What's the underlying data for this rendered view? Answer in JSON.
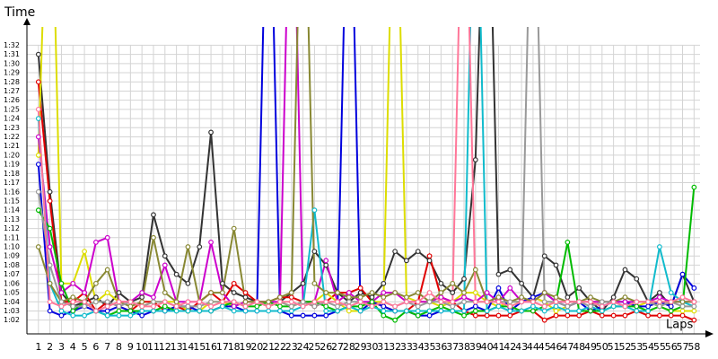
{
  "chart_data": {
    "type": "line",
    "ylabel": "Time",
    "xlabel": "Laps",
    "x": [
      1,
      2,
      3,
      4,
      5,
      6,
      7,
      8,
      9,
      10,
      11,
      12,
      13,
      14,
      15,
      16,
      17,
      18,
      19,
      20,
      21,
      22,
      23,
      24,
      25,
      26,
      27,
      28,
      29,
      30,
      31,
      32,
      33,
      34,
      35,
      36,
      37,
      38,
      39,
      40,
      41,
      42,
      43,
      44,
      45,
      46,
      47,
      48,
      49,
      50,
      51,
      52,
      53,
      54,
      55,
      56,
      57,
      58
    ],
    "xlim": [
      0,
      59.3
    ],
    "xticks": [
      1,
      2,
      3,
      4,
      5,
      6,
      7,
      8,
      9,
      10,
      11,
      12,
      13,
      14,
      15,
      16,
      17,
      18,
      19,
      20,
      21,
      22,
      23,
      24,
      25,
      26,
      27,
      28,
      29,
      30,
      31,
      32,
      33,
      34,
      35,
      36,
      37,
      38,
      39,
      40,
      41,
      42,
      43,
      44,
      45,
      46,
      47,
      48,
      49,
      50,
      51,
      52,
      53,
      54,
      55,
      56,
      57,
      58
    ],
    "ylim": [
      60.5,
      94
    ],
    "yticks": [
      {
        "value": 62,
        "label": "1:02"
      },
      {
        "value": 63,
        "label": "1:03"
      },
      {
        "value": 64,
        "label": "1:04"
      },
      {
        "value": 65,
        "label": "1:05"
      },
      {
        "value": 66,
        "label": "1:06"
      },
      {
        "value": 67,
        "label": "1:07"
      },
      {
        "value": 68,
        "label": "1:08"
      },
      {
        "value": 69,
        "label": "1:09"
      },
      {
        "value": 70,
        "label": "1:10"
      },
      {
        "value": 71,
        "label": "1:11"
      },
      {
        "value": 72,
        "label": "1:12"
      },
      {
        "value": 73,
        "label": "1:13"
      },
      {
        "value": 74,
        "label": "1:14"
      },
      {
        "value": 75,
        "label": "1:15"
      },
      {
        "value": 76,
        "label": "1:16"
      },
      {
        "value": 77,
        "label": "1:17"
      },
      {
        "value": 78,
        "label": "1:18"
      },
      {
        "value": 79,
        "label": "1:19"
      },
      {
        "value": 80,
        "label": "1:20"
      },
      {
        "value": 81,
        "label": "1:21"
      },
      {
        "value": 82,
        "label": "1:22"
      },
      {
        "value": 83,
        "label": "1:23"
      },
      {
        "value": 84,
        "label": "1:24"
      },
      {
        "value": 85,
        "label": "1:25"
      },
      {
        "value": 86,
        "label": "1:26"
      },
      {
        "value": 87,
        "label": "1:27"
      },
      {
        "value": 88,
        "label": "1:28"
      },
      {
        "value": 89,
        "label": "1:29"
      },
      {
        "value": 90,
        "label": "1:30"
      },
      {
        "value": 91,
        "label": "1:31"
      },
      {
        "value": 92,
        "label": "1:32"
      }
    ],
    "grid": true,
    "series": [
      {
        "color": "#333333",
        "values": [
          91,
          76,
          65,
          63.5,
          64,
          64.5,
          63.5,
          65,
          64,
          64.5,
          73.5,
          69,
          67,
          66,
          70,
          82.5,
          66,
          65,
          64.5,
          64,
          63.5,
          64,
          65,
          66,
          69.5,
          68,
          65,
          64,
          65,
          64.5,
          66,
          69.5,
          68.5,
          69.5,
          68.5,
          66,
          65,
          66.5,
          79.5,
          120,
          67,
          67.5,
          66,
          64.5,
          69,
          68,
          64.5,
          65.5,
          64,
          63,
          64.5,
          67.5,
          66.5,
          64,
          65,
          63.5,
          67,
          64
        ]
      },
      {
        "color": "#e00000",
        "values": [
          88,
          75,
          64,
          64,
          65,
          63,
          64,
          63.5,
          63,
          64,
          64,
          63,
          63.5,
          63,
          64,
          65,
          64,
          66,
          65,
          64,
          64,
          64.5,
          64.5,
          64,
          63.5,
          64,
          65,
          65,
          65.5,
          64,
          63.5,
          63,
          63,
          64,
          69,
          64.5,
          64,
          63,
          62.5,
          62.5,
          62.5,
          62.5,
          63,
          63,
          62,
          62.5,
          62.5,
          62.5,
          63,
          62.5,
          62.5,
          62.5,
          63,
          62.5,
          62.5,
          62.5,
          62.5,
          62
        ]
      },
      {
        "color": "#dddd00",
        "values": [
          80,
          120,
          66,
          66,
          69.5,
          64,
          65,
          64,
          64,
          63.5,
          64,
          64,
          64,
          63,
          63,
          64,
          64,
          63.5,
          64,
          64,
          63.5,
          64,
          63.5,
          64,
          64,
          65,
          64,
          63,
          63,
          64,
          64,
          120,
          64.5,
          64,
          64,
          63.5,
          64,
          65,
          65,
          64,
          63.5,
          64,
          64,
          64.5,
          64,
          63,
          63.5,
          64,
          64,
          64,
          64,
          64,
          63.5,
          64,
          63.5,
          63,
          63,
          63
        ]
      },
      {
        "color": "#0000dd",
        "values": [
          79,
          63,
          62.5,
          63,
          63.5,
          63,
          63,
          63.5,
          63,
          62.5,
          63,
          63,
          63.5,
          63.5,
          63,
          63,
          63.5,
          63.5,
          63,
          63,
          120,
          63,
          62.5,
          62.5,
          62.5,
          62.5,
          63,
          120,
          63,
          64,
          63.5,
          63,
          63,
          62.5,
          62.5,
          63,
          63,
          63,
          63.5,
          63,
          65.5,
          63,
          64,
          64.5,
          65,
          64,
          63.5,
          64,
          63,
          63.5,
          64,
          64,
          63.5,
          63.5,
          64,
          63.5,
          67,
          65.5
        ]
      },
      {
        "color": "#cc00cc",
        "values": [
          82,
          70,
          65,
          66,
          65,
          70.5,
          71,
          64,
          64,
          65,
          64.5,
          68,
          64,
          64,
          64,
          70.5,
          65,
          63.5,
          64,
          64,
          64,
          64,
          120,
          64,
          64,
          68.5,
          64,
          65,
          64,
          64,
          65,
          65,
          64,
          64,
          64,
          64.5,
          64,
          64.5,
          64,
          65,
          64,
          65.5,
          64,
          64,
          65,
          64,
          64,
          64,
          64,
          64,
          64,
          64,
          64,
          64,
          64.5,
          64,
          64,
          64
        ]
      },
      {
        "color": "#00bb00",
        "values": [
          74,
          72,
          66,
          63,
          64,
          63,
          62.5,
          63,
          63,
          63,
          63,
          63.5,
          63,
          63,
          63,
          63,
          63.5,
          64,
          63.5,
          63.5,
          64,
          63.5,
          63.5,
          64,
          64,
          63.5,
          63,
          63.5,
          63.5,
          64,
          62.5,
          62,
          63,
          62.5,
          63,
          63.5,
          63,
          62.5,
          63,
          63,
          63.5,
          63.5,
          63,
          63,
          63.5,
          64,
          70.5,
          63,
          63,
          63,
          63.5,
          63.5,
          63.5,
          63,
          63.5,
          63,
          63.5,
          76.5
        ]
      },
      {
        "color": "#11bbcc",
        "values": [
          84,
          66,
          63,
          62.5,
          62.5,
          63,
          62.5,
          62.5,
          62.5,
          63,
          63,
          63,
          63,
          63,
          63,
          63,
          63.5,
          63,
          63,
          63,
          63,
          63,
          63,
          63.5,
          74,
          63,
          63,
          63.5,
          63,
          63.5,
          63,
          63,
          63,
          63,
          63,
          63,
          63,
          63,
          120,
          63,
          63.5,
          63,
          63,
          63.5,
          63,
          63.5,
          63,
          63,
          63.5,
          63,
          63.5,
          63.5,
          63,
          63,
          70,
          65,
          64,
          63.5
        ]
      },
      {
        "color": "#888833",
        "values": [
          70,
          66,
          64,
          64.5,
          64,
          66,
          67.5,
          64,
          63.5,
          64,
          71,
          65,
          64,
          70,
          64,
          65,
          65,
          72,
          64,
          64,
          64,
          64.5,
          65,
          120,
          66,
          65,
          65,
          64.5,
          64.5,
          65,
          64.5,
          65,
          64.5,
          65,
          64,
          65,
          66,
          65,
          67.5,
          64,
          64.5,
          64,
          64.5,
          64,
          65,
          64.5,
          64,
          64,
          64.5,
          64,
          64,
          64.5,
          64,
          64,
          64,
          64,
          64,
          64
        ]
      },
      {
        "color": "#999999",
        "values": [
          76,
          68,
          64,
          63.5,
          63.5,
          64,
          64,
          63.5,
          64,
          63.5,
          64,
          64,
          63.5,
          63.5,
          63.5,
          64,
          64,
          64,
          63.5,
          64,
          63.5,
          64,
          63.5,
          64,
          63.5,
          64,
          63.5,
          64,
          64,
          63.5,
          64,
          63.5,
          64,
          63.5,
          64,
          64,
          63.5,
          64,
          64,
          64,
          64,
          64,
          64,
          120,
          64,
          64,
          63.5,
          64,
          63.5,
          64,
          64,
          63.5,
          64,
          64,
          63.5,
          64,
          63.5,
          63.5
        ]
      },
      {
        "color": "#ff7799",
        "values": [
          85,
          64,
          63.5,
          64,
          64,
          63,
          63.5,
          64,
          64,
          63.5,
          63.5,
          64,
          63.5,
          64,
          64,
          63.5,
          64,
          64,
          63.5,
          64,
          63.5,
          64,
          64,
          63.5,
          64,
          64,
          64,
          63.5,
          64,
          63.5,
          64,
          63.5,
          64,
          64,
          65,
          64,
          64,
          120,
          64,
          64,
          64,
          63.5,
          64,
          64,
          63.5,
          64,
          64,
          64,
          64,
          63.5,
          64,
          63.5,
          64,
          64,
          64,
          64,
          64.5,
          64
        ]
      }
    ]
  }
}
